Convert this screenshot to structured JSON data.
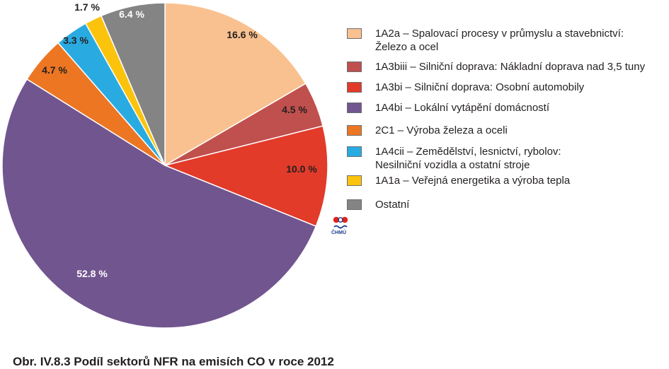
{
  "chart_data": {
    "type": "pie",
    "title": "Obr. IV.8.3  Podíl sektorů NFR na emisích CO v roce 2012",
    "start": "12 o'clock",
    "direction": "clockwise",
    "legend_placement": "right",
    "slices": [
      {
        "label": "1A2a – Spalovací procesy v průmyslu a stavebnictví:\nŽelezo a ocel",
        "value": 16.6,
        "value_label": "16.6 %",
        "color": "#f9c18f",
        "label_color": "#231f20"
      },
      {
        "label": "1A3biii – Silniční doprava: Nákladní doprava nad 3,5 tuny",
        "value": 4.5,
        "value_label": "4.5 %",
        "color": "#c0504d",
        "label_color": "#231f20"
      },
      {
        "label": "1A3bi – Silniční doprava: Osobní automobily",
        "value": 10.0,
        "value_label": "10.0 %",
        "color": "#e23b2a",
        "label_color": "#231f20"
      },
      {
        "label": "1A4bi  – Lokální vytápění domácností",
        "value": 52.8,
        "value_label": "52.8 %",
        "color": "#71558f",
        "label_color": "#ffffff"
      },
      {
        "label": "2C1 – Výroba železa a oceli",
        "value": 4.7,
        "value_label": "4.7 %",
        "color": "#ed7623",
        "label_color": "#231f20"
      },
      {
        "label": "1A4cii – Zemědělství, lesnictví, rybolov:\nNesilniční vozidla a ostatní stroje",
        "value": 3.3,
        "value_label": "3.3 %",
        "color": "#29abe2",
        "label_color": "#231f20"
      },
      {
        "label": "1A1a – Veřejná energetika a výroba tepla",
        "value": 1.7,
        "value_label": "1.7 %",
        "color": "#fcc30d",
        "label_color": "#231f20"
      },
      {
        "label": "Ostatní",
        "value": 6.4,
        "value_label": "6.4 %",
        "color": "#848484",
        "label_color": "#ffffff"
      }
    ]
  },
  "logo": {
    "text": "ČHMÚ"
  }
}
